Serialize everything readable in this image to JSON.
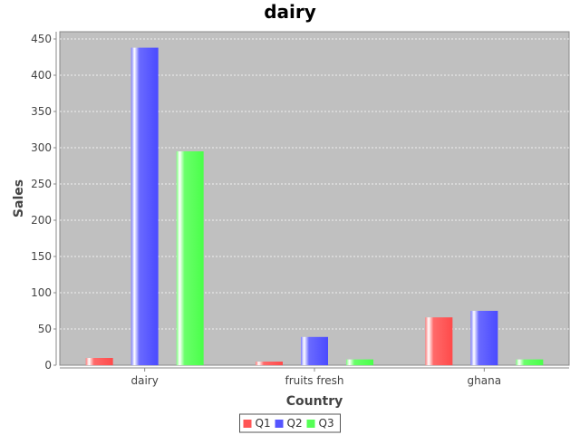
{
  "chart_data": {
    "type": "bar",
    "title": "dairy",
    "xlabel": "Country",
    "ylabel": "Sales",
    "categories": [
      "dairy",
      "fruits fresh",
      "ghana"
    ],
    "series": [
      {
        "name": "Q1",
        "color": "#ff5555",
        "values": [
          10,
          5,
          66
        ]
      },
      {
        "name": "Q2",
        "color": "#5555ff",
        "values": [
          438,
          39,
          75
        ]
      },
      {
        "name": "Q3",
        "color": "#55ff55",
        "values": [
          295,
          8,
          8
        ]
      }
    ],
    "ylim": [
      0,
      460
    ],
    "yticks": [
      0,
      50,
      100,
      150,
      200,
      250,
      300,
      350,
      400,
      450
    ],
    "grid": true,
    "legend_position": "bottom",
    "plot_background": "#c0c0c0"
  }
}
